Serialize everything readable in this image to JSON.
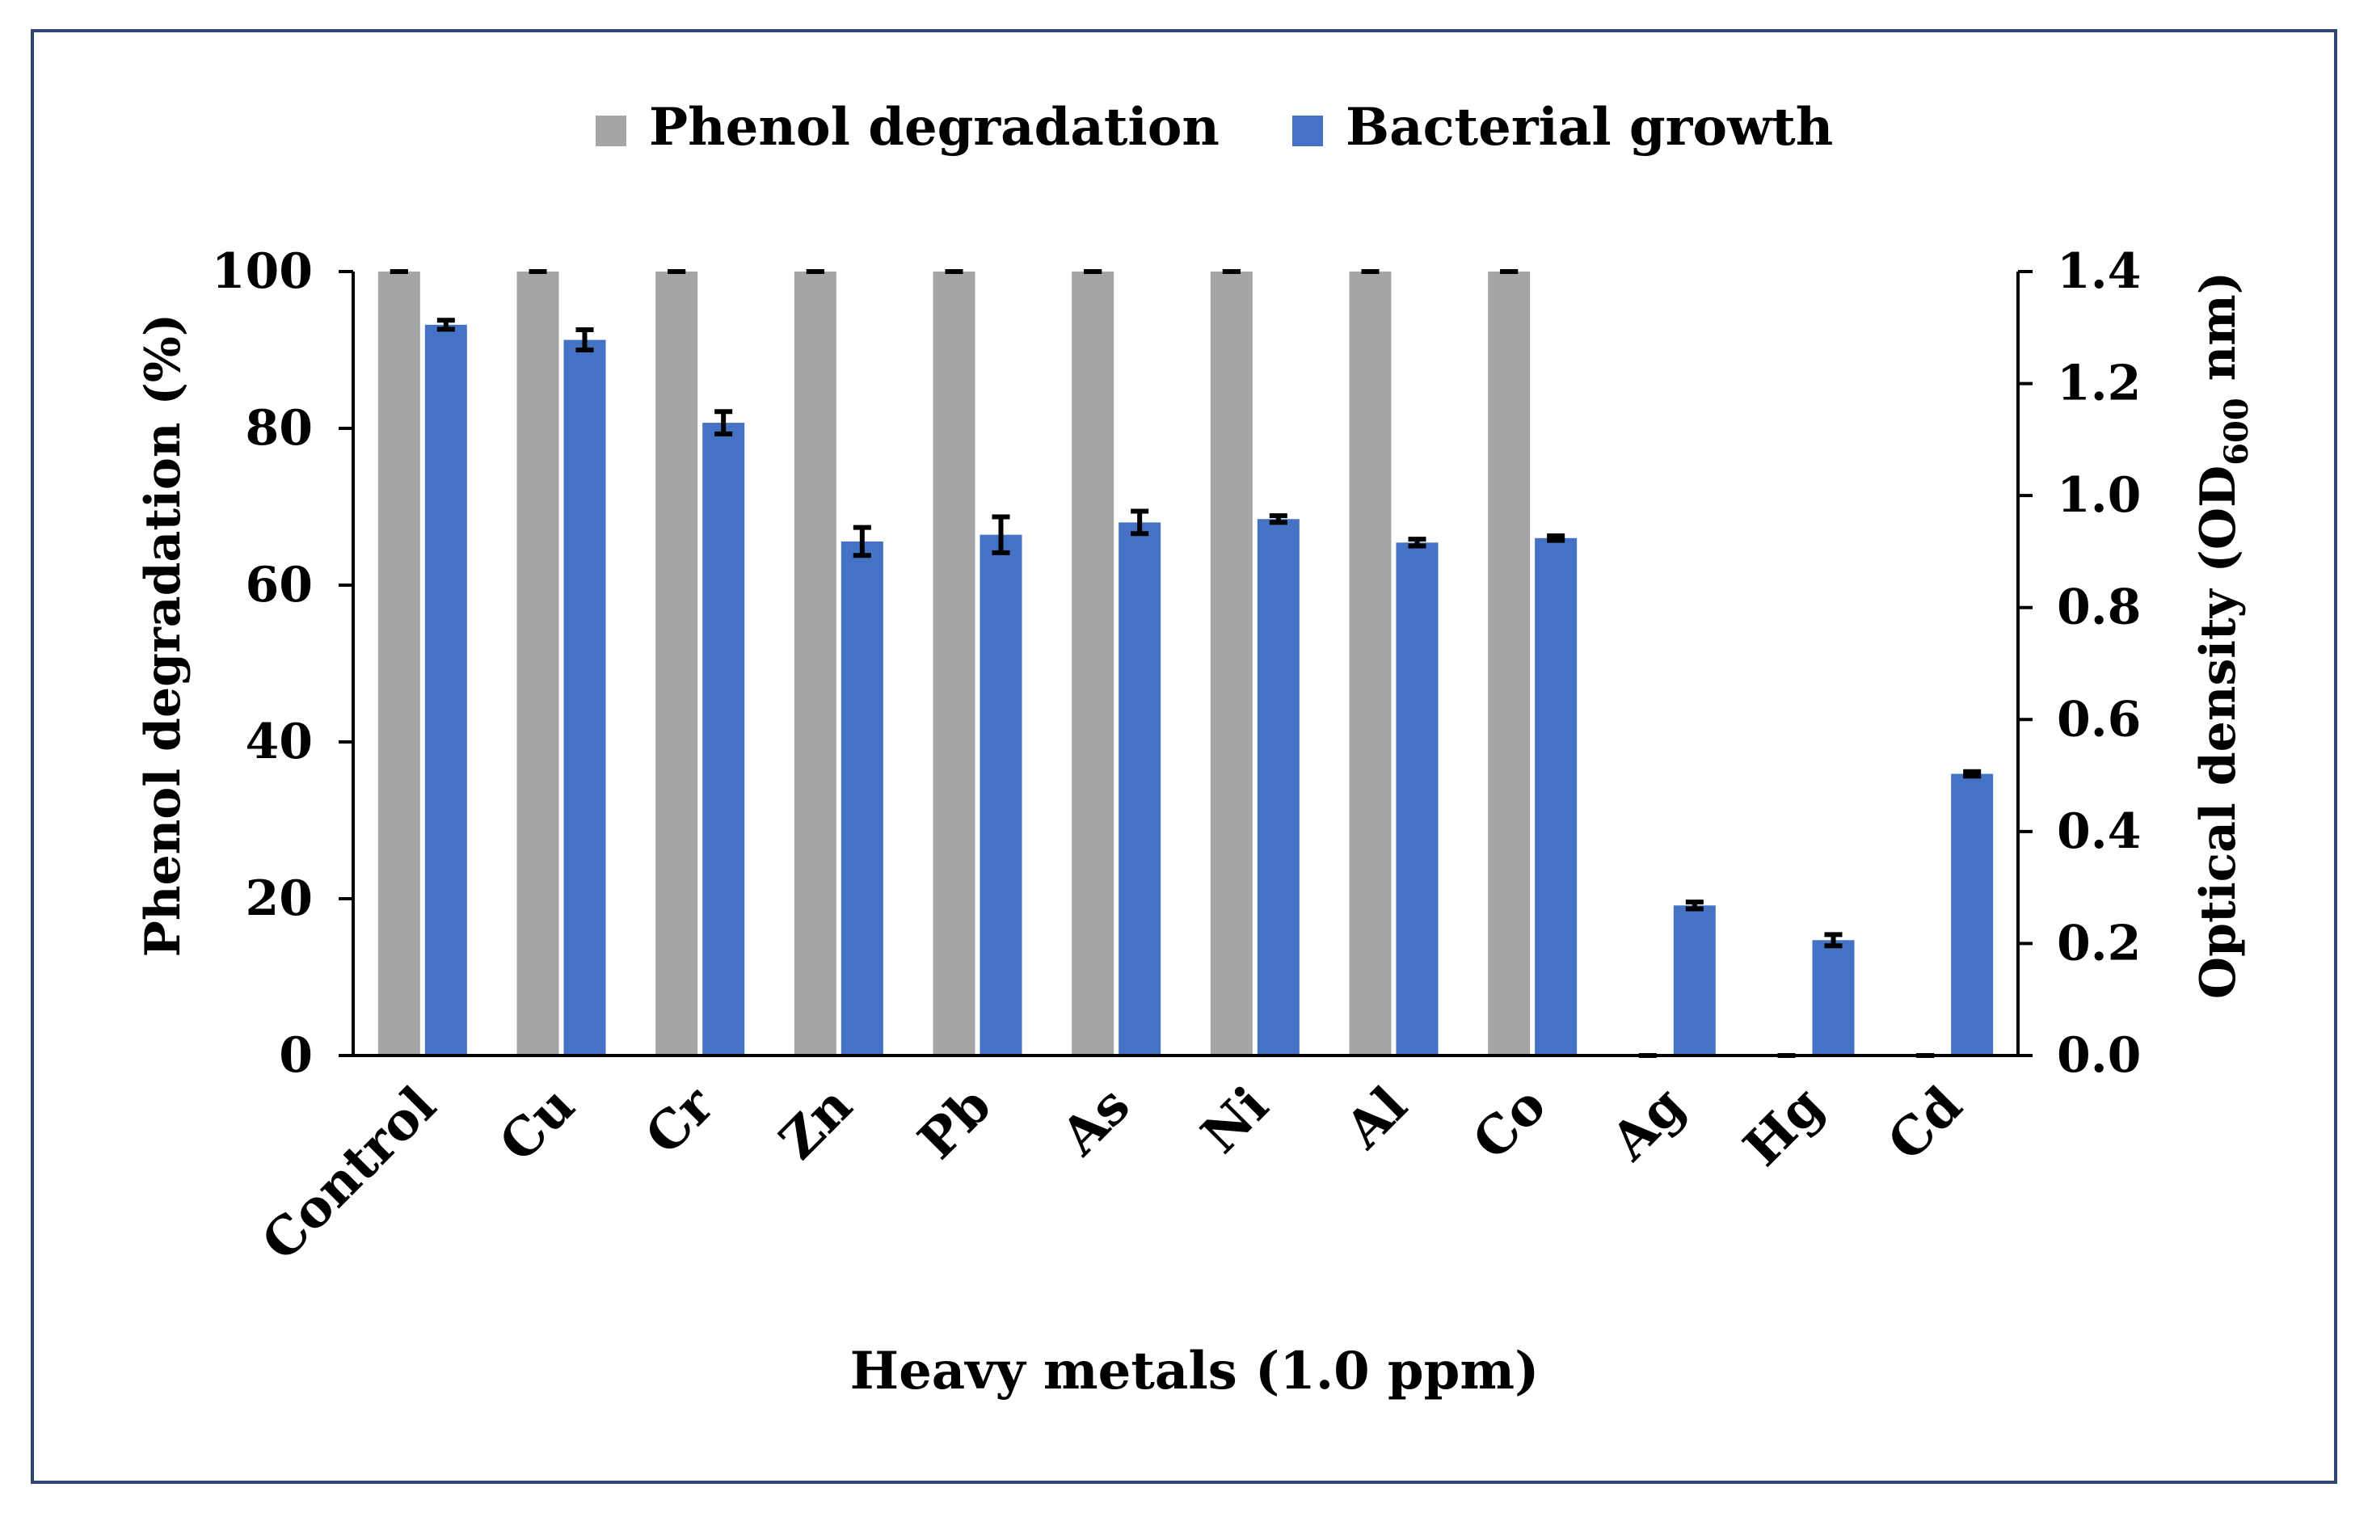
{
  "chart_data": {
    "type": "bar",
    "categories": [
      "Control",
      "Cu",
      "Cr",
      "Zn",
      "Pb",
      "As",
      "Ni",
      "Al",
      "Co",
      "Ag",
      "Hg",
      "Cd"
    ],
    "series": [
      {
        "name": "Phenol degradation",
        "axis": "left",
        "color": "#a5a5a5",
        "values": [
          100,
          100,
          100,
          100,
          100,
          100,
          100,
          100,
          100,
          0,
          0,
          0
        ],
        "errors": [
          0,
          0,
          0,
          0,
          0,
          0,
          0,
          0,
          0,
          0,
          0,
          0
        ]
      },
      {
        "name": "Bacterial growth",
        "axis": "right",
        "color": "#4472c4",
        "values": [
          1.305,
          1.278,
          1.13,
          0.918,
          0.93,
          0.952,
          0.958,
          0.916,
          0.924,
          0.268,
          0.206,
          0.503
        ],
        "errors": [
          0.008,
          0.018,
          0.02,
          0.025,
          0.032,
          0.02,
          0.006,
          0.006,
          0.004,
          0.006,
          0.01,
          0.004
        ]
      }
    ],
    "xlabel": "Heavy metals (1.0 ppm)",
    "ylabel": "Phenol degradation (%)",
    "y2label_prefix": "Optical density (OD",
    "y2label_sub": "600",
    "y2label_suffix": " nm)",
    "ylim": [
      0,
      100
    ],
    "yticks": [
      "0",
      "20",
      "40",
      "60",
      "80",
      "100"
    ],
    "y2lim": [
      0,
      1.4
    ],
    "y2ticks": [
      "0.0",
      "0.2",
      "0.4",
      "0.6",
      "0.8",
      "1.0",
      "1.2",
      "1.4"
    ],
    "legend_position": "top",
    "grid": false
  }
}
